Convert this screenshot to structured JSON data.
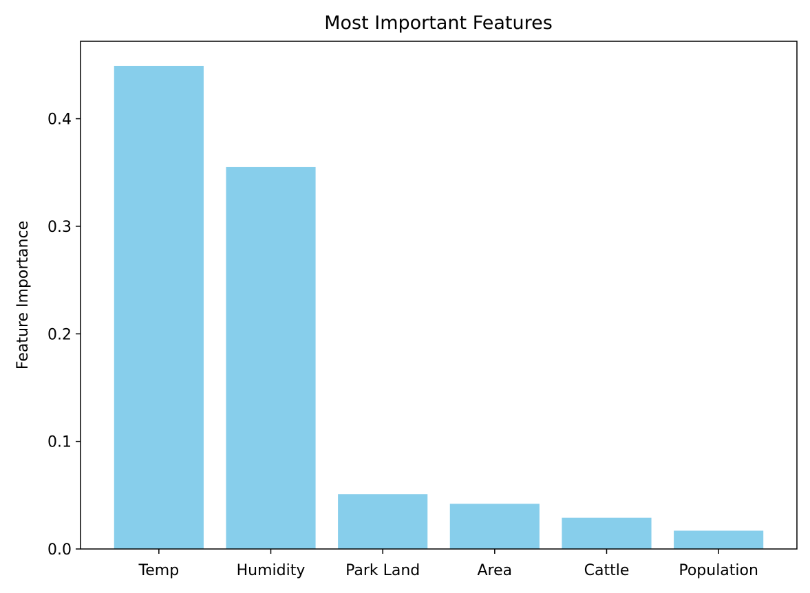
{
  "chart_data": {
    "type": "bar",
    "title": "Most Important Features",
    "xlabel": "",
    "ylabel": "Feature Importance",
    "categories": [
      "Temp",
      "Humidity",
      "Park Land",
      "Area",
      "Cattle",
      "Population"
    ],
    "values": [
      0.449,
      0.355,
      0.051,
      0.042,
      0.029,
      0.017
    ],
    "ylim": [
      0,
      0.472
    ],
    "yticks": [
      0.0,
      0.1,
      0.2,
      0.3,
      0.4
    ],
    "ytick_labels": [
      "0.0",
      "0.1",
      "0.2",
      "0.3",
      "0.4"
    ],
    "bar_color": "#87CEEB",
    "grid": false,
    "legend": "none"
  }
}
